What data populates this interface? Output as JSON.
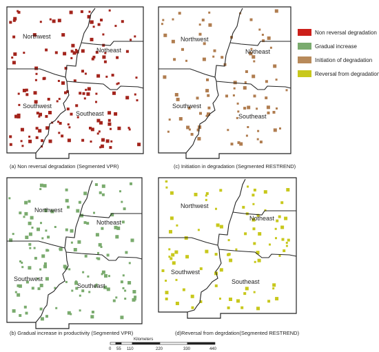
{
  "legend": {
    "items": [
      {
        "label": "Non reversal degradation",
        "color": "#cc1f1a"
      },
      {
        "label": "Gradual increase",
        "color": "#7aab6e"
      },
      {
        "label": "Initiation of degradation",
        "color": "#b88a5a"
      },
      {
        "label": "Reversal from degradation",
        "color": "#c8c81c"
      }
    ]
  },
  "panels": [
    {
      "caption": "(a) Non reversal degradation (Segmented VPR)",
      "regions": [
        "Northwest",
        "Notheast",
        "Southwest",
        "Southeast"
      ],
      "color": "#a3241c"
    },
    {
      "caption": "(c) Initiation in degradation (Segmented RESTREND)",
      "regions": [
        "Northwest",
        "Notheast",
        "Southwest",
        "Southeast"
      ],
      "color": "#b07d50"
    },
    {
      "caption": "(b) Gradual increase in productivity (Segmented VPR)",
      "regions": [
        "Northwest",
        "Notheast",
        "Southwest",
        "Southeast"
      ],
      "color": "#7aab6e"
    },
    {
      "caption": "(d)Reversal from degrdation(Segmented RESTREND)",
      "regions": [
        "Northwest",
        "Notheast",
        "Southwest",
        "Southeast"
      ],
      "color": "#c8c81c"
    }
  ],
  "scale_bar": {
    "unit": "Kilometers",
    "ticks": [
      "0",
      "55",
      "110",
      "220",
      "330",
      "440"
    ]
  }
}
